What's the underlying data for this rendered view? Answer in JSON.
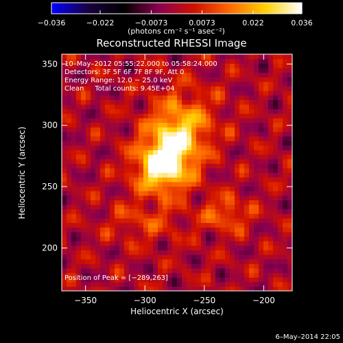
{
  "colorbar": {
    "min": -0.036,
    "max": 0.036,
    "tick_labels": [
      "−0.036",
      "−0.022",
      "−0.0073",
      "0.0073",
      "0.022",
      "0.036"
    ],
    "tick_values": [
      -0.036,
      -0.022,
      -0.0073,
      0.0073,
      0.022,
      0.036
    ],
    "units_label": "(photons cm⁻² s⁻¹ asec⁻²)",
    "colormap": [
      "#0000ff",
      "#1a0040",
      "#000000",
      "#8a0050",
      "#d01000",
      "#ff6a00",
      "#ffd000",
      "#ffffff"
    ]
  },
  "chart_data": {
    "type": "heatmap",
    "title": "Reconstructed RHESSI Image",
    "xlabel": "Heliocentric X (arcsec)",
    "ylabel": "Heliocentric Y (arcsec)",
    "xlim": [
      -370,
      -176
    ],
    "ylim": [
      165,
      358
    ],
    "x_ticks": [
      -350,
      -300,
      -250,
      -200
    ],
    "y_ticks": [
      200,
      250,
      300,
      350
    ],
    "x_tick_labels": [
      "−350",
      "−300",
      "−250",
      "−200"
    ],
    "y_tick_labels": [
      "200",
      "250",
      "300",
      "350"
    ],
    "peak_position": [
      -289,
      263
    ],
    "sources": [
      {
        "x": -285,
        "y": 266,
        "amp": 0.036,
        "sx": 16,
        "sy": 14
      },
      {
        "x": -275,
        "y": 290,
        "amp": 0.02,
        "sx": 16,
        "sy": 16
      },
      {
        "x": -265,
        "y": 305,
        "amp": 0.012,
        "sx": 20,
        "sy": 20
      },
      {
        "x": -232,
        "y": 228,
        "amp": 0.014,
        "sx": 14,
        "sy": 10
      },
      {
        "x": -300,
        "y": 222,
        "amp": 0.009,
        "sx": 22,
        "sy": 12
      }
    ],
    "annotations": {
      "time_range": "10–May–2012 05:55:22.000 to 05:58:24.000",
      "detectors": "Detectors: 3F 5F 6F 7F 8F 9F, Att 0",
      "energy": "Energy Range: 12.0 − 25.0 keV",
      "method_counts": "Clean     Total counts: 9.45E+04",
      "peak_label": "Position of Peak = [−289,263]"
    }
  },
  "footer": {
    "timestamp": "6–May–2014 22:05"
  }
}
